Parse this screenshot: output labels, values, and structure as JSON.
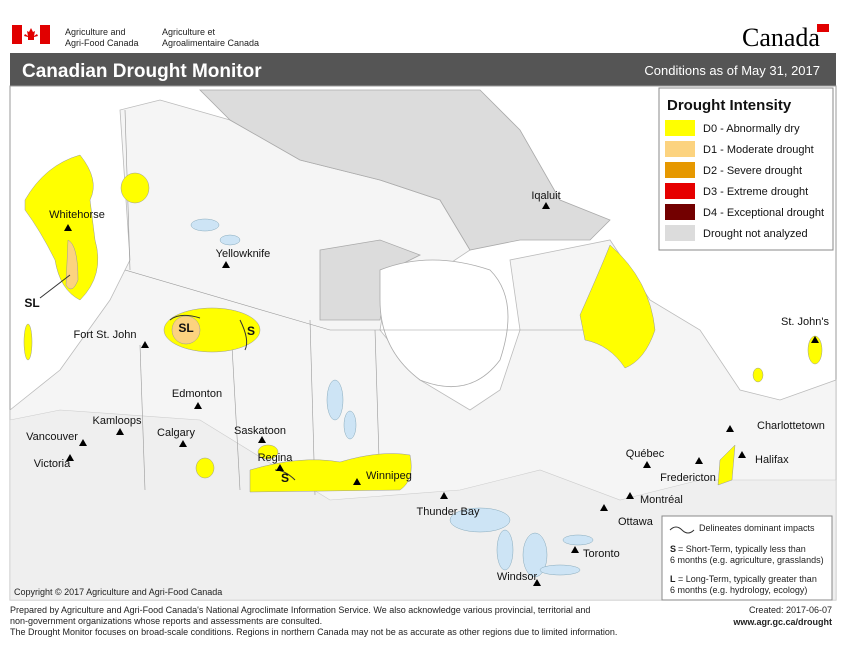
{
  "header": {
    "org_en": [
      "Agriculture and",
      "Agri-Food Canada"
    ],
    "org_fr": [
      "Agriculture et",
      "Agroalimentaire Canada"
    ],
    "wordmark": "Canada"
  },
  "title_bar": {
    "title": "Canadian Drought Monitor",
    "conditions": "Conditions as of May 31, 2017"
  },
  "legend": {
    "title": "Drought Intensity",
    "items": [
      {
        "label": "D0 - Abnormally dry",
        "color": "#ffff00"
      },
      {
        "label": "D1 - Moderate drought",
        "color": "#fcd37f"
      },
      {
        "label": "D2 - Severe drought",
        "color": "#e69800"
      },
      {
        "label": "D3 - Extreme drought",
        "color": "#e60000"
      },
      {
        "label": "D4 - Exceptional drought",
        "color": "#730000"
      },
      {
        "label": "Drought not analyzed",
        "color": "#dcdcdc"
      }
    ]
  },
  "cities": [
    "Whitehorse",
    "Yellowknife",
    "Iqaluit",
    "Fort St. John",
    "Edmonton",
    "Kamloops",
    "Calgary",
    "Saskatoon",
    "Regina",
    "Vancouver",
    "Victoria",
    "Winnipeg",
    "Thunder Bay",
    "Windsor",
    "Toronto",
    "Ottawa",
    "Montréal",
    "Québec",
    "Fredericton",
    "Charlottetown",
    "Halifax",
    "St. John's"
  ],
  "impact_labels": [
    "SL",
    "SL",
    "S",
    "S"
  ],
  "key": {
    "line_label": "Delineates dominant impacts",
    "short_term": {
      "code": "S",
      "lines": [
        "= Short-Term, typically less than",
        "6 months (e.g. agriculture, grasslands)"
      ]
    },
    "long_term": {
      "code": "L",
      "lines": [
        "= Long-Term, typically greater  than",
        "6 months (e.g. hydrology, ecology)"
      ]
    }
  },
  "copyright": "Copyright © 2017 Agriculture and Agri-Food Canada",
  "footer": {
    "lines": [
      "Prepared by Agriculture and Agri-Food Canada's National Agroclimate Information Service.  We also acknowledge various provincial, territorial and",
      "non-government organizations whose reports and assessments are consulted.",
      "The Drought Monitor focuses on broad-scale conditions.  Regions in northern Canada may not be as accurate as other regions due to limited information."
    ],
    "created": "Created: 2017-06-07",
    "url": "www.agr.gc.ca/drought"
  }
}
